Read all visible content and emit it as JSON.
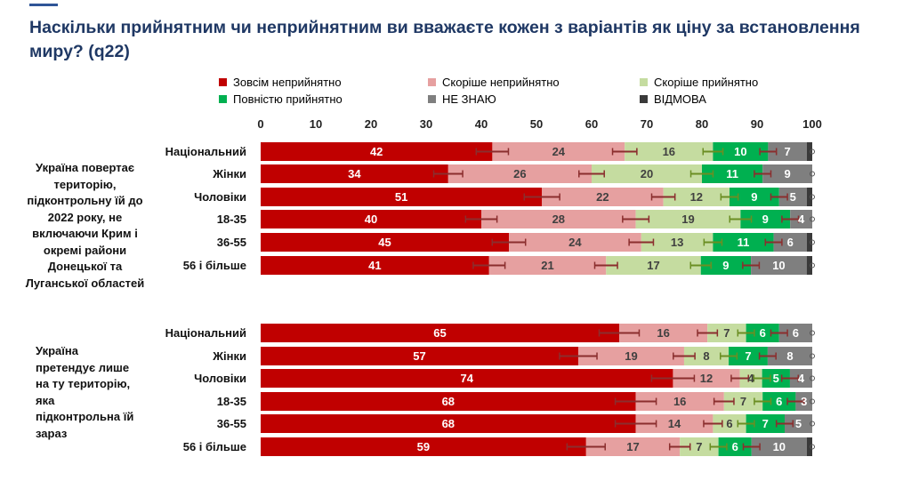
{
  "title": "Наскільки прийнятним чи неприйнятним ви вважаєте кожен з варіантів як ціну за встановлення миру? (q22)",
  "colors": {
    "title": "#1f3864",
    "accent": "#2f5597",
    "bar_label_dark": "#404040",
    "bar_label_light": "#ffffff",
    "error_bar": "#8b2e2e",
    "error_bar_green": "#6b8e23"
  },
  "chart_data": {
    "type": "bar",
    "orientation": "horizontal",
    "stacked": true,
    "title": "Наскільки прийнятним чи неприйнятним ви вважаєте кожен з варіантів як ціну за встановлення миру? (q22)",
    "xlim": [
      0,
      100
    ],
    "x_ticks": [
      "0",
      "10",
      "20",
      "30",
      "40",
      "50",
      "60",
      "70",
      "80",
      "90",
      "100"
    ],
    "grid": false,
    "legend_position": "top",
    "series": [
      {
        "name": "Зовсім неприйнятно",
        "color": "#c00000"
      },
      {
        "name": "Скоріше неприйнятно",
        "color": "#e6a0a0"
      },
      {
        "name": "Скоріше прийнятно",
        "color": "#c5dca0"
      },
      {
        "name": "Повністю прийнятно",
        "color": "#00b050"
      },
      {
        "name": "НЕ ЗНАЮ",
        "color": "#7f7f7f"
      },
      {
        "name": "ВІДМОВА",
        "color": "#3a3a3a"
      }
    ],
    "groups": [
      {
        "label": "Україна повертає територію, підконтрольну їй до 2022 року, не включаючи Крим і окремі райони Донецької та Луганської областей",
        "rows": [
          {
            "label": "Національний",
            "values": [
              42,
              24,
              16,
              10,
              7,
              1
            ],
            "labels": [
              "42",
              "24",
              "16",
              "10",
              "7",
              ""
            ]
          },
          {
            "label": "Жінки",
            "values": [
              34,
              26,
              20,
              11,
              9,
              0
            ],
            "labels": [
              "34",
              "26",
              "20",
              "11",
              "9",
              ""
            ]
          },
          {
            "label": "Чоловіки",
            "values": [
              51,
              22,
              12,
              9,
              5,
              1
            ],
            "labels": [
              "51",
              "22",
              "12",
              "9",
              "5",
              ""
            ]
          },
          {
            "label": "18-35",
            "values": [
              40,
              28,
              19,
              9,
              4,
              0
            ],
            "labels": [
              "40",
              "28",
              "19",
              "9",
              "4",
              ""
            ]
          },
          {
            "label": "36-55",
            "values": [
              45,
              24,
              13,
              11,
              6,
              1
            ],
            "labels": [
              "45",
              "24",
              "13",
              "11",
              "6",
              ""
            ]
          },
          {
            "label": "56 і більше",
            "values": [
              41,
              21,
              17,
              9,
              10,
              1
            ],
            "labels": [
              "41",
              "21",
              "17",
              "9",
              "10",
              ""
            ]
          }
        ]
      },
      {
        "label": "Україна претендує лише на ту територію, яка підконтрольна їй зараз",
        "rows": [
          {
            "label": "Національний",
            "values": [
              65,
              16,
              7,
              6,
              6,
              0
            ],
            "labels": [
              "65",
              "16",
              "7",
              "6",
              "6",
              ""
            ]
          },
          {
            "label": "Жінки",
            "values": [
              57,
              19,
              8,
              7,
              8,
              0
            ],
            "labels": [
              "57",
              "19",
              "8",
              "7",
              "8",
              ""
            ]
          },
          {
            "label": "Чоловіки",
            "values": [
              74,
              12,
              4,
              5,
              4,
              0
            ],
            "labels": [
              "74",
              "12",
              "4",
              "5",
              "4",
              ""
            ]
          },
          {
            "label": "18-35",
            "values": [
              68,
              16,
              7,
              6,
              3,
              0
            ],
            "labels": [
              "68",
              "16",
              "7",
              "6",
              "3",
              ""
            ]
          },
          {
            "label": "36-55",
            "values": [
              68,
              14,
              6,
              7,
              5,
              0
            ],
            "labels": [
              "68",
              "14",
              "6",
              "7",
              "5",
              ""
            ]
          },
          {
            "label": "56 і більше",
            "values": [
              59,
              17,
              7,
              6,
              10,
              1
            ],
            "labels": [
              "59",
              "17",
              "7",
              "6",
              "10",
              ""
            ]
          }
        ]
      }
    ]
  }
}
